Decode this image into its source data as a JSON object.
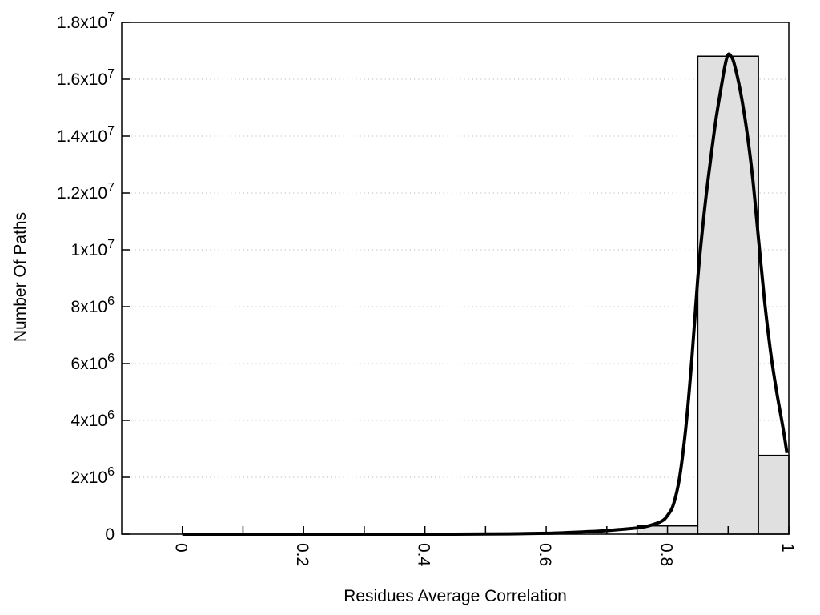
{
  "chart_data": {
    "type": "bar",
    "subtype": "histogram-with-density-curve",
    "title": "",
    "xlabel": "Residues Average Correlation",
    "ylabel": "Number Of Paths",
    "xlim": [
      -0.1,
      1.0
    ],
    "ylim": [
      0,
      18000000
    ],
    "grid": "horizontal dotted lines at every major y tick",
    "legend_position": "none",
    "x_ticks": {
      "major_values": [
        0,
        0.2,
        0.4,
        0.6,
        0.8,
        1
      ],
      "major_labels": [
        "0",
        "0.2",
        "0.4",
        "0.6",
        "0.8",
        "1"
      ],
      "minor_step": 0.1,
      "label_rotation_deg": 90
    },
    "y_ticks": {
      "values": [
        0,
        2000000,
        4000000,
        6000000,
        8000000,
        10000000,
        12000000,
        14000000,
        16000000,
        18000000
      ],
      "labels": [
        "0",
        "2x10^6",
        "4x10^6",
        "6x10^6",
        "8x10^6",
        "1x10^7",
        "1.2x10^7",
        "1.4x10^7",
        "1.6x10^7",
        "1.8x10^7"
      ]
    },
    "series": [
      {
        "name": "histogram",
        "type": "bar",
        "bins": [
          {
            "x0": 0.75,
            "x1": 0.85,
            "count": 290000
          },
          {
            "x0": 0.85,
            "x1": 0.95,
            "count": 16810000
          },
          {
            "x0": 0.95,
            "x1": 1.0,
            "count": 2770000
          }
        ]
      },
      {
        "name": "density-curve",
        "type": "line",
        "points": [
          [
            0.0,
            0
          ],
          [
            0.05,
            0
          ],
          [
            0.1,
            0
          ],
          [
            0.15,
            0
          ],
          [
            0.2,
            0
          ],
          [
            0.25,
            0
          ],
          [
            0.3,
            0
          ],
          [
            0.35,
            0
          ],
          [
            0.4,
            0
          ],
          [
            0.45,
            0
          ],
          [
            0.5,
            5000
          ],
          [
            0.55,
            15000
          ],
          [
            0.6,
            30000
          ],
          [
            0.63,
            50000
          ],
          [
            0.66,
            80000
          ],
          [
            0.69,
            110000
          ],
          [
            0.72,
            160000
          ],
          [
            0.75,
            220000
          ],
          [
            0.77,
            300000
          ],
          [
            0.79,
            450000
          ],
          [
            0.8,
            650000
          ],
          [
            0.81,
            1050000
          ],
          [
            0.82,
            2000000
          ],
          [
            0.83,
            3700000
          ],
          [
            0.84,
            6100000
          ],
          [
            0.85,
            9000000
          ],
          [
            0.86,
            11200000
          ],
          [
            0.87,
            13000000
          ],
          [
            0.88,
            14600000
          ],
          [
            0.89,
            15900000
          ],
          [
            0.895,
            16500000
          ],
          [
            0.9,
            16870000
          ],
          [
            0.905,
            16800000
          ],
          [
            0.91,
            16550000
          ],
          [
            0.92,
            15600000
          ],
          [
            0.93,
            14300000
          ],
          [
            0.94,
            12600000
          ],
          [
            0.95,
            10400000
          ],
          [
            0.96,
            8200000
          ],
          [
            0.97,
            6400000
          ],
          [
            0.98,
            5000000
          ],
          [
            0.99,
            3800000
          ],
          [
            0.997,
            2850000
          ]
        ]
      }
    ],
    "colors": {
      "background": "#ffffff",
      "axis_border": "#000000",
      "text": "#000000",
      "grid_dots": "#c8c8c8",
      "bar_fill": "#e0e0e0",
      "bar_border": "#000000",
      "curve": "#000000"
    }
  }
}
